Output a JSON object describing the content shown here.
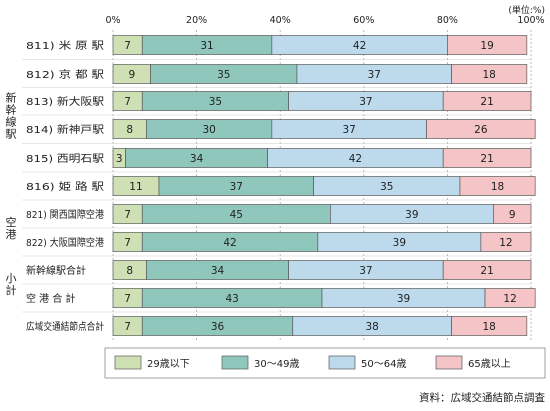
{
  "chart_data": {
    "type": "bar",
    "orientation": "horizontal",
    "stacked": true,
    "unit_label": "(単位:%)",
    "x_ticks": [
      "0%",
      "20%",
      "40%",
      "60%",
      "80%",
      "100%"
    ],
    "xlim": [
      0,
      100
    ],
    "categories": [
      "811) 米 原 駅",
      "812) 京 都 駅",
      "813) 新大阪駅",
      "814) 新神戸駅",
      "815) 西明石駅",
      "816) 姫 路 駅",
      "821) 関西国際空港",
      "822) 大阪国際空港",
      "新幹線駅合計",
      "空 港 合 計",
      "広域交通結節点合計"
    ],
    "groups": [
      {
        "label": "新幹線駅",
        "rows": [
          0,
          5
        ]
      },
      {
        "label": "空港",
        "rows": [
          6,
          7
        ]
      },
      {
        "label": "小計",
        "rows": [
          8,
          9
        ]
      }
    ],
    "series": [
      {
        "name": "29歳以下",
        "color": "#cfe0b4",
        "values": [
          7,
          9,
          7,
          8,
          3,
          11,
          7,
          7,
          8,
          7,
          7
        ]
      },
      {
        "name": "30～49歳",
        "color": "#8fc7bd",
        "values": [
          31,
          35,
          35,
          30,
          34,
          37,
          45,
          42,
          34,
          43,
          36
        ]
      },
      {
        "name": "50～64歳",
        "color": "#bdd9ec",
        "values": [
          42,
          37,
          37,
          37,
          42,
          35,
          39,
          39,
          37,
          39,
          38
        ]
      },
      {
        "name": "65歳以上",
        "color": "#f4c4c6",
        "values": [
          19,
          18,
          21,
          26,
          21,
          18,
          9,
          12,
          21,
          12,
          18
        ]
      }
    ],
    "legend_position": "bottom",
    "grid": true
  },
  "source_note": "資料：広域交通結節点調査"
}
